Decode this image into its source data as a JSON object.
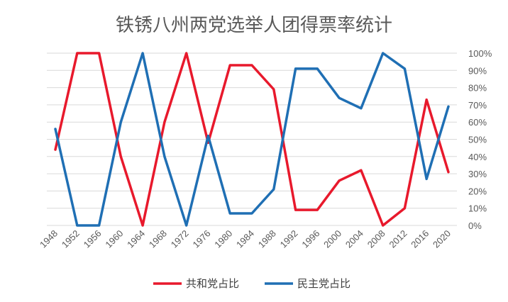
{
  "chart_data": {
    "type": "line",
    "title": "铁锈八州两党选举人团得票率统计",
    "x": [
      "1948",
      "1952",
      "1956",
      "1960",
      "1964",
      "1968",
      "1972",
      "1976",
      "1980",
      "1984",
      "1988",
      "1992",
      "1996",
      "2000",
      "2004",
      "2008",
      "2012",
      "2016",
      "2020"
    ],
    "series": [
      {
        "name": "共和党占比",
        "color": "#e8192c",
        "values": [
          44,
          100,
          100,
          40,
          0,
          60,
          100,
          48,
          93,
          93,
          79,
          9,
          9,
          26,
          32,
          0,
          10,
          73,
          31
        ]
      },
      {
        "name": "民主党占比",
        "color": "#1f6fb4",
        "values": [
          56,
          0,
          0,
          60,
          100,
          40,
          0,
          52,
          7,
          7,
          21,
          91,
          91,
          74,
          68,
          100,
          91,
          27,
          69
        ]
      }
    ],
    "ylim": [
      0,
      100
    ],
    "y_ticks": [
      "0%",
      "10%",
      "20%",
      "30%",
      "40%",
      "50%",
      "60%",
      "70%",
      "80%",
      "90%",
      "100%"
    ],
    "y_axis_side": "right",
    "grid": true,
    "legend_position": "bottom"
  }
}
